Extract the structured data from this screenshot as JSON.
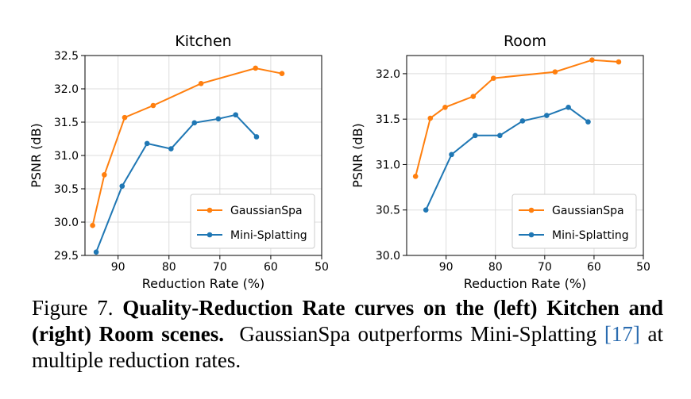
{
  "chart_data": [
    {
      "type": "line",
      "title": "Kitchen",
      "xlabel": "Reduction Rate (%)",
      "ylabel": "PSNR (dB)",
      "xlim": [
        96.5,
        50
      ],
      "ylim": [
        29.5,
        32.5
      ],
      "x_ticks": [
        90,
        80,
        70,
        60,
        50
      ],
      "y_ticks": [
        29.5,
        30.0,
        30.5,
        31.0,
        31.5,
        32.0,
        32.5
      ],
      "y_tick_labels": [
        "29.5",
        "30.0",
        "30.5",
        "31.0",
        "31.5",
        "32.0",
        "32.5"
      ],
      "grid": true,
      "legend_position": "lower-right",
      "series": [
        {
          "name": "GaussianSpa",
          "color": "#ff7f0e",
          "x": [
            95.0,
            92.7,
            88.7,
            83.1,
            73.7,
            63.0,
            57.8
          ],
          "y": [
            29.95,
            30.71,
            31.57,
            31.75,
            32.08,
            32.31,
            32.23
          ]
        },
        {
          "name": "Mini-Splatting",
          "color": "#1f77b4",
          "x": [
            94.3,
            89.2,
            84.3,
            79.6,
            75.0,
            70.3,
            66.9,
            62.8
          ],
          "y": [
            29.55,
            30.54,
            31.18,
            31.1,
            31.49,
            31.55,
            31.61,
            31.28
          ]
        }
      ]
    },
    {
      "type": "line",
      "title": "Room",
      "xlabel": "Reduction Rate (%)",
      "ylabel": "PSNR (dB)",
      "xlim": [
        98,
        50
      ],
      "ylim": [
        30.0,
        32.2
      ],
      "x_ticks": [
        90,
        80,
        70,
        60,
        50
      ],
      "y_ticks": [
        30.0,
        30.5,
        31.0,
        31.5,
        32.0
      ],
      "y_tick_labels": [
        "30.0",
        "30.5",
        "31.0",
        "31.5",
        "32.0"
      ],
      "grid": true,
      "legend_position": "lower-right",
      "series": [
        {
          "name": "GaussianSpa",
          "color": "#ff7f0e",
          "x": [
            96.2,
            93.2,
            90.2,
            84.5,
            80.4,
            67.9,
            60.4,
            55.0
          ],
          "y": [
            30.87,
            31.51,
            31.63,
            31.75,
            31.95,
            32.02,
            32.15,
            32.13
          ]
        },
        {
          "name": "Mini-Splatting",
          "color": "#1f77b4",
          "x": [
            94.1,
            88.9,
            84.1,
            79.1,
            74.5,
            69.6,
            65.2,
            61.2
          ],
          "y": [
            30.5,
            31.11,
            31.32,
            31.32,
            31.48,
            31.54,
            31.63,
            31.47
          ]
        }
      ]
    }
  ],
  "caption": {
    "label": "Figure 7.",
    "bold_text": "Quality-Reduction Rate curves on the (left) Kitchen and (right) Room scenes.",
    "text_before_ref": "GaussianSpa outperforms Mini-Splatting",
    "ref": "[17]",
    "text_after_ref": "at multiple reduction rates."
  }
}
